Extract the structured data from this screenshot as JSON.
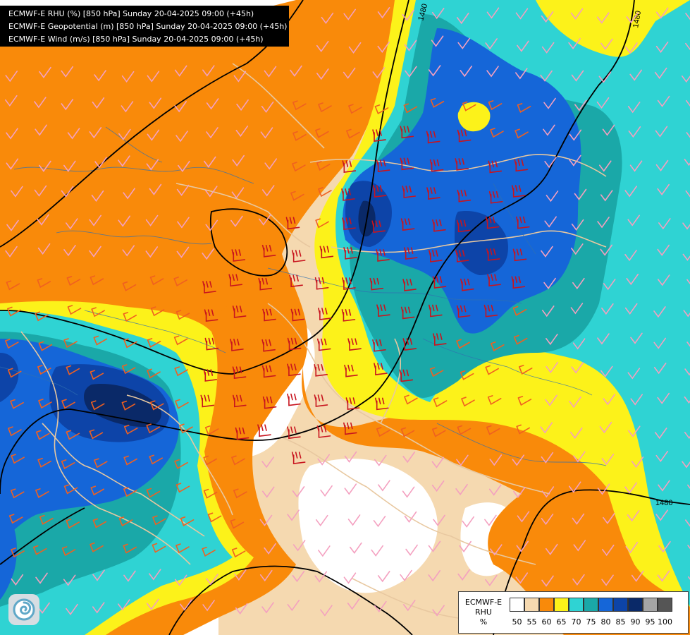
{
  "title_lines": [
    "ECMWF-E RHU (%) [850 hPa] Sunday 20-04-2025 09:00 (+45h)",
    "ECMWF-E Geopotential (m) [850 hPa] Sunday 20-04-2025 09:00 (+45h)",
    "ECMWF-E Wind (m/s) [850 hPa] Sunday 20-04-2025 09:00 (+45h)"
  ],
  "contour_labels": [
    "1480",
    "1480",
    "1480"
  ],
  "legend": {
    "name_lines": [
      "ECMWF-E",
      "RHU",
      "%"
    ],
    "ticks": [
      "50",
      "55",
      "60",
      "65",
      "70",
      "75",
      "80",
      "85",
      "90",
      "95",
      "100"
    ],
    "colors": [
      "#ffffff",
      "#f5d9b0",
      "#f98a0a",
      "#fcf21a",
      "#2fd3d3",
      "#1aa8a8",
      "#1566d8",
      "#0d44a8",
      "#0a2968",
      "#a5a5a5",
      "#555555"
    ]
  },
  "colors": {
    "rhu_55": "#f5d9b0",
    "rhu_60": "#f98a0a",
    "rhu_65": "#fcf21a",
    "rhu_70": "#2fd3d3",
    "rhu_75": "#1aa8a8",
    "rhu_80": "#1566d8",
    "rhu_85": "#0d44a8",
    "rhu_90": "#0a2968",
    "wind_light": "#f4a0c0",
    "wind_medium": "#f06020",
    "wind_strong": "#c8141e",
    "border_coast": "#e8c8a0",
    "rivers": "#3070b0",
    "contour": "#000000"
  },
  "logo_icon": "ecmwf-swirl-icon"
}
